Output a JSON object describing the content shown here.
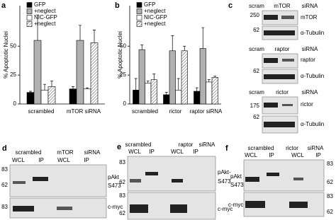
{
  "chart_data": [
    {
      "type": "bar",
      "label": "a",
      "ylabel": "% Apoptotic Nuclei",
      "categories": [
        "scrambled",
        "mTOR siRNA"
      ],
      "ylim": [
        0,
        85
      ],
      "yticks": [
        0,
        25,
        50
      ],
      "series": [
        {
          "name": "GFP",
          "color": "#000000",
          "values": [
            10,
            13
          ],
          "errors": [
            1,
            2
          ]
        },
        {
          "name": "+neglect",
          "color": "#b0b0b0",
          "values": [
            55,
            55
          ],
          "errors": [
            22,
            13
          ]
        },
        {
          "name": "NIC-GFP",
          "color": "#ffffff",
          "values": [
            12,
            13
          ],
          "errors": [
            5,
            1
          ]
        },
        {
          "name": "+neglect",
          "color": "#ffffff",
          "pattern": "hatch",
          "values": [
            15,
            53
          ],
          "errors": [
            5,
            11
          ]
        }
      ]
    },
    {
      "type": "bar",
      "label": "b",
      "ylabel": "% Apoptotic Nuclei",
      "categories": [
        "scrambled",
        "rictor",
        "raptor siRNA"
      ],
      "ylim": [
        0,
        85
      ],
      "yticks": [
        0,
        25,
        50
      ],
      "series": [
        {
          "name": "GFP",
          "color": "#000000",
          "values": [
            12,
            8,
            11
          ],
          "errors": [
            10,
            2,
            3
          ]
        },
        {
          "name": "+neglect",
          "color": "#b0b0b0",
          "values": [
            47,
            46,
            48
          ],
          "errors": [
            4,
            13,
            18
          ]
        },
        {
          "name": "NIC-GFP",
          "color": "#ffffff",
          "values": [
            18,
            12,
            19
          ],
          "errors": [
            2,
            10,
            2
          ]
        },
        {
          "name": "+neglect",
          "color": "#ffffff",
          "pattern": "hatch",
          "values": [
            21,
            46,
            23
          ],
          "errors": [
            5,
            4,
            1
          ]
        }
      ]
    }
  ],
  "panels": {
    "c": {
      "letter": "c",
      "blots": [
        {
          "header": [
            "scram",
            "mTOR",
            "siRNA"
          ],
          "markers": [
            "250",
            "62"
          ],
          "labels": [
            "mTOR",
            "α-Tubulin"
          ]
        },
        {
          "header": [
            "scram",
            "raptor",
            "siRNA"
          ],
          "markers": [
            "62"
          ],
          "labels": [
            "raptor",
            "α-Tubulin"
          ]
        },
        {
          "header": [
            "scram",
            "rictor",
            "siRNA"
          ],
          "markers": [
            "175",
            "62"
          ],
          "labels": [
            "rictor",
            "α-Tubulin"
          ]
        }
      ]
    },
    "d": {
      "letter": "d",
      "header": [
        "scrambled",
        "mTOR",
        "siRNA"
      ],
      "lanes": [
        "WCL",
        "IP",
        "WCL",
        "IP"
      ],
      "markers": [
        "83",
        "62",
        "83"
      ],
      "labels": [
        "pAkt",
        "S473",
        "c-myc"
      ]
    },
    "e": {
      "letter": "e",
      "header": [
        "scrambled",
        "raptor",
        "siRNA"
      ],
      "lanes": [
        "WCL",
        "IP",
        "WCL",
        "IP"
      ],
      "markers": [
        "83",
        "62",
        "83",
        "62"
      ],
      "labels": [
        "pAkt-",
        "S473",
        "c-myc"
      ]
    },
    "f": {
      "letter": "f",
      "header": [
        "scrambled",
        "rictor",
        "siRNA"
      ],
      "lanes": [
        "WCL",
        "IP",
        "WCL",
        "IP"
      ],
      "markers": [
        "83",
        "62",
        "83",
        "62"
      ],
      "labels": [
        "pAkt",
        "S473",
        "c-myc"
      ]
    }
  }
}
